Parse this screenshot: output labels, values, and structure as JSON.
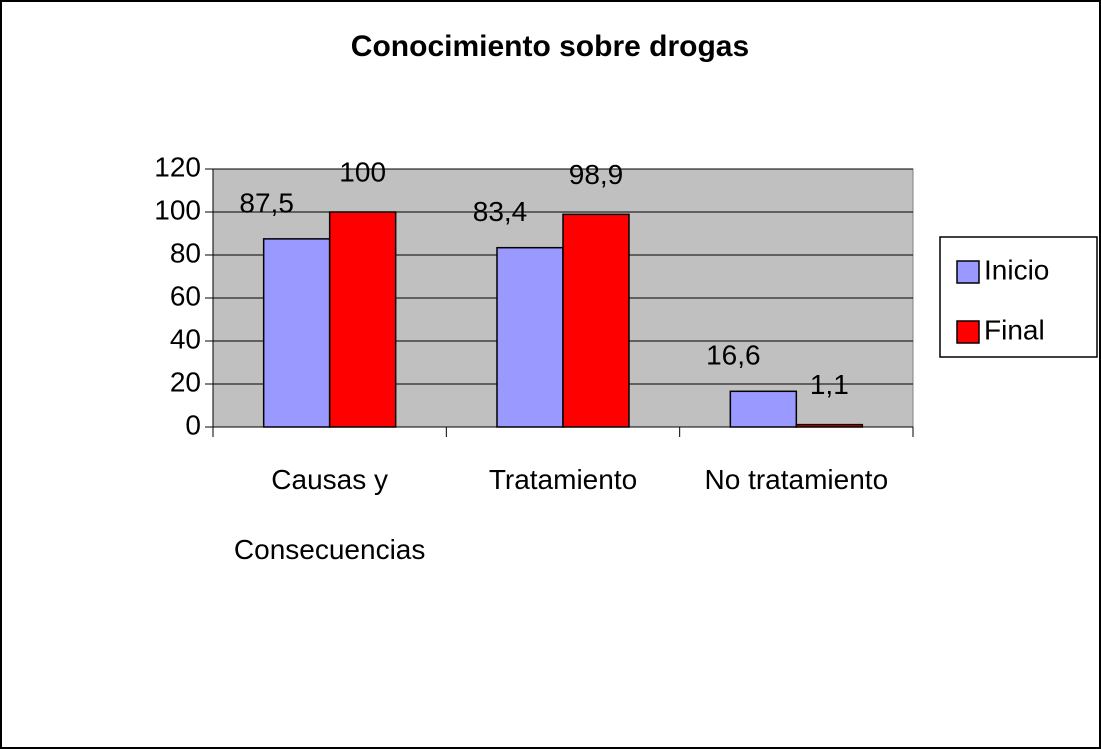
{
  "chart_data": {
    "type": "bar",
    "title": "Conocimiento sobre drogas",
    "categories": [
      "Causas y Consecuencias",
      "Tratamiento",
      "No tratamiento"
    ],
    "series": [
      {
        "name": "Inicio",
        "color": "#9999ff",
        "values": [
          87.5,
          83.4,
          16.6
        ],
        "value_labels": [
          "87,5",
          "83,4",
          "16,6"
        ]
      },
      {
        "name": "Final",
        "color": "#ff0000",
        "values": [
          100,
          98.9,
          1.1
        ],
        "value_labels": [
          "100",
          "98,9",
          "1,1"
        ]
      }
    ],
    "ylim": [
      0,
      120
    ],
    "yticks": [
      0,
      20,
      40,
      60,
      80,
      100,
      120
    ],
    "grid": true,
    "plot_background": "#c0c0c0",
    "legend": "right"
  }
}
